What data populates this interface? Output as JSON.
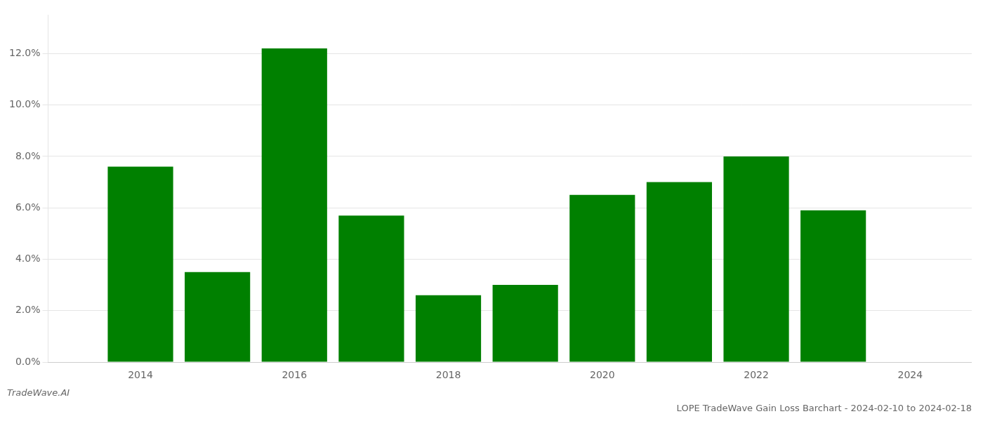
{
  "chart_data": {
    "type": "bar",
    "title": "LOPE TradeWave Gain Loss Barchart - 2024-02-10 to 2024-02-18",
    "annotations": [
      "TradeWave.AI"
    ],
    "x": [
      2014,
      2015,
      2016,
      2017,
      2018,
      2019,
      2020,
      2021,
      2022,
      2023
    ],
    "values": [
      0.076,
      0.035,
      0.122,
      0.057,
      0.026,
      0.03,
      0.065,
      0.07,
      0.08,
      0.059
    ],
    "color": "#008000",
    "xlim": [
      2012.8,
      2024.8
    ],
    "xticks": [
      2014,
      2016,
      2018,
      2020,
      2022,
      2024
    ],
    "ylim": [
      0,
      0.135
    ],
    "yticks": [
      {
        "value": 0.0,
        "label": "0.0%"
      },
      {
        "value": 0.02,
        "label": "2.0%"
      },
      {
        "value": 0.04,
        "label": "4.0%"
      },
      {
        "value": 0.06,
        "label": "6.0%"
      },
      {
        "value": 0.08,
        "label": "8.0%"
      },
      {
        "value": 0.1,
        "label": "10.0%"
      },
      {
        "value": 0.12,
        "label": "12.0%"
      }
    ],
    "grid": true
  }
}
